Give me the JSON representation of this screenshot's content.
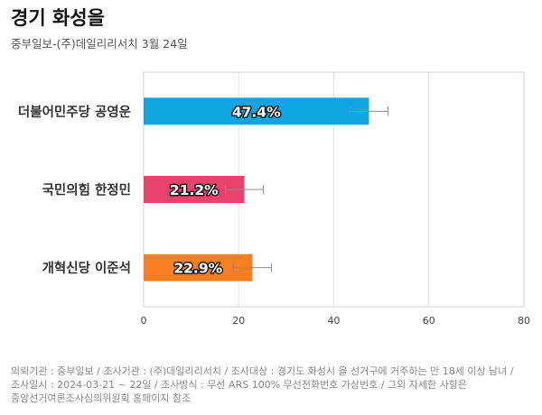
{
  "header": {
    "title": "경기 화성을",
    "subtitle": "중부일보-(주)데일리리서치 3월 24일"
  },
  "chart_data": {
    "type": "bar",
    "orientation": "horizontal",
    "categories": [
      "더불어민주당 공영운",
      "국민의힘 한정민",
      "개혁신당 이준석"
    ],
    "values": [
      47.4,
      21.2,
      22.9
    ],
    "value_labels": [
      "47.4%",
      "21.2%",
      "22.9%"
    ],
    "colors": [
      "#0ea5e0",
      "#e8426d",
      "#fb7e22"
    ],
    "error_margin": 4.0,
    "xlim": [
      0,
      80
    ],
    "xticks": [
      0,
      20,
      40,
      60,
      80
    ],
    "grid": true
  },
  "footnote": {
    "lines": [
      "의뢰기관 : 중부일보 / 조사기관 : (주)데일리리서치 / 조사대상 : 경기도 화성시 을 선거구에 거주하는 만 18세 이상 남녀 /",
      "조사일시 : 2024-03-21 ~ 22일 / 조사방식 : 무선 ARS 100% 무선전화번호 가상번호 / 그외 자세한 사항은",
      "중앙선거여론조사심의위원회 홈페이지 참조"
    ]
  }
}
